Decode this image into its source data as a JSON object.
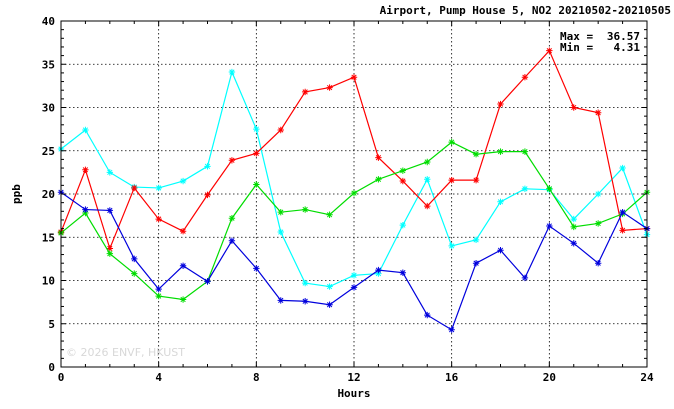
{
  "chart_data": {
    "type": "line",
    "title": "Airport, Pump House 5, NO2 20210502-20210505",
    "xlabel": "Hours",
    "ylabel": "ppb",
    "xlim": [
      0,
      24
    ],
    "ylim": [
      0,
      40
    ],
    "x_ticks": [
      0,
      4,
      8,
      12,
      16,
      20,
      24
    ],
    "y_ticks": [
      0,
      5,
      10,
      15,
      20,
      25,
      30,
      35,
      40
    ],
    "grid": true,
    "legend": "none",
    "annotations": {
      "max_label": "Max =",
      "max_value": "36.57",
      "min_label": "Min =",
      "min_value": "4.31"
    },
    "watermark": "© 2026 ENVF, HKUST",
    "x": [
      0,
      1,
      2,
      3,
      4,
      5,
      6,
      7,
      8,
      9,
      10,
      11,
      12,
      13,
      14,
      15,
      16,
      17,
      18,
      19,
      20,
      21,
      22,
      23,
      24
    ],
    "series": [
      {
        "color": "#00ffff",
        "values": [
          25.2,
          27.4,
          22.5,
          20.8,
          20.7,
          21.5,
          23.2,
          34.1,
          27.5,
          15.6,
          9.7,
          9.3,
          10.6,
          10.8,
          16.4,
          21.7,
          14.0,
          14.7,
          19.1,
          20.6,
          20.5,
          17.1,
          20.0,
          23.0,
          15.3
        ]
      },
      {
        "color": "#ff0000",
        "values": [
          15.6,
          22.8,
          13.7,
          20.7,
          17.1,
          15.7,
          19.9,
          23.9,
          24.7,
          27.4,
          31.8,
          32.3,
          33.5,
          24.2,
          21.5,
          18.6,
          21.6,
          21.6,
          30.4,
          33.5,
          36.57,
          30.0,
          29.4,
          15.8,
          16.0
        ]
      },
      {
        "color": "#00dd00",
        "values": [
          15.5,
          17.8,
          13.1,
          10.8,
          8.2,
          7.8,
          9.9,
          17.2,
          21.1,
          17.9,
          18.2,
          17.6,
          20.1,
          21.7,
          22.7,
          23.7,
          26.0,
          24.6,
          24.9,
          24.9,
          20.6,
          16.2,
          16.6,
          17.7,
          20.2
        ]
      },
      {
        "color": "#0000dd",
        "values": [
          20.2,
          18.2,
          18.1,
          12.5,
          9.0,
          11.7,
          9.9,
          14.6,
          11.4,
          7.7,
          7.6,
          7.2,
          9.2,
          11.2,
          10.9,
          6.0,
          4.31,
          12.0,
          13.5,
          10.3,
          16.3,
          14.3,
          12.0,
          17.9,
          16.0
        ]
      }
    ]
  }
}
